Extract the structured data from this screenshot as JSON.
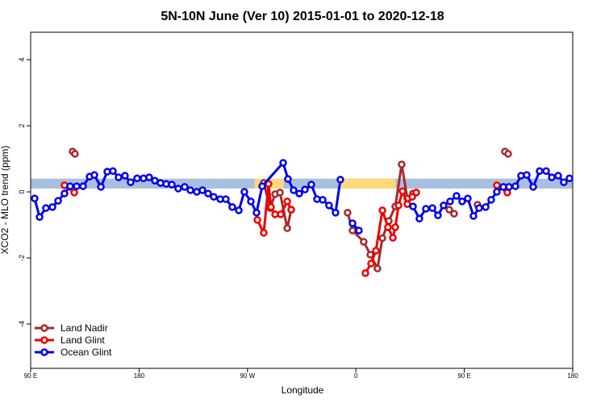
{
  "chart_data": {
    "type": "line",
    "title": "5N-10N June (Ver 10)   2015-01-01 to 2020-12-18",
    "x_label": "Longitude",
    "y_label": "XCO2 - MLO trend (ppm)",
    "xlim": [
      90,
      540
    ],
    "ylim": [
      -5.34,
      4.83
    ],
    "xticks": [
      {
        "value": 90,
        "label": "90 E"
      },
      180,
      {
        "value": 270,
        "label": "90 W"
      },
      {
        "value": 360,
        "label": "0"
      },
      {
        "value": 450,
        "label": "90 E"
      },
      {
        "value": 540,
        "label": "180"
      }
    ],
    "yticks": [
      -4,
      -2,
      0,
      2,
      4
    ],
    "band": {
      "ylim": [
        0.1,
        0.4
      ],
      "color": "#a9bfdf"
    },
    "highlight_spans": {
      "color": "#ffd97a",
      "ranges": [
        [
          276,
          300
        ],
        [
          345,
          393
        ]
      ]
    },
    "legend": "bottom-left",
    "series": [
      {
        "name": "Land Nadir",
        "color": "#a52a2a",
        "x": [
          124.8,
          126.8,
          200,
          283.5,
          288.9,
          292.9,
          297.0,
          303.0,
          306.3,
          330,
          353.1,
          357.2,
          366.5,
          372.0,
          377.9,
          382.0,
          387.3,
          392.7,
          398.0,
          402.7,
          407.4,
          420,
          437.5,
          441.5,
          450,
          461.0,
          470,
          483.7,
          486.4
        ],
        "values": [
          1.22,
          1.15,
          null,
          0.27,
          -0.49,
          -0.07,
          -0.02,
          -1.1,
          -0.54,
          null,
          -0.63,
          -1.17,
          -1.51,
          -1.9,
          -2.32,
          -1.4,
          -0.88,
          -0.44,
          0.83,
          -0.2,
          -0.05,
          null,
          -0.54,
          -0.66,
          null,
          -0.39,
          null,
          1.22,
          1.15
        ]
      },
      {
        "name": "Land Glint",
        "color": "#ee0000",
        "x": [
          118.1,
          126.2,
          200,
          278.2,
          283.5,
          287.5,
          289.5,
          292.9,
          297.6,
          303.0,
          306.3,
          330,
          367.9,
          372.6,
          376.6,
          382.0,
          386.6,
          390.7,
          392.7,
          395.4,
          398.7,
          402.7,
          406.8,
          410.1,
          440,
          477.0,
          485.7
        ],
        "values": [
          0.2,
          -0.02,
          null,
          -0.85,
          -1.24,
          0.24,
          -0.46,
          -0.68,
          -0.68,
          -0.29,
          -0.54,
          null,
          -2.46,
          -2.17,
          -1.78,
          -0.56,
          -1.07,
          -1.39,
          -1.07,
          -0.41,
          0.02,
          -0.37,
          -0.15,
          -0.02,
          null,
          0.2,
          -0.02
        ]
      },
      {
        "name": "Ocean Glint",
        "color": "#0000ee",
        "x": [
          93.3,
          97.4,
          102.7,
          108.1,
          112.8,
          118.1,
          122.8,
          128.2,
          133.5,
          138.9,
          142.9,
          148.3,
          153.6,
          158.3,
          163.0,
          168.3,
          173.0,
          178.4,
          183.7,
          188.4,
          193.1,
          197.8,
          202.5,
          207.2,
          212.5,
          217.9,
          222.6,
          227.9,
          232.6,
          237.3,
          242.0,
          247.4,
          252.0,
          257.4,
          262.8,
          267.4,
          272.8,
          277.5,
          282.2,
          299.6,
          303.6,
          308.3,
          313.0,
          317.7,
          323.0,
          327.7,
          332.4,
          337.7,
          343.1,
          347.1,
          350,
          357.2,
          362.5,
          380,
          407.4,
          412.7,
          418.1,
          423.5,
          428.1,
          432.8,
          438.2,
          443.5,
          448.2,
          452.9,
          457.6,
          462.3,
          467.7,
          472.3,
          477.0,
          482.4,
          487.1,
          492.4,
          497.1,
          501.8,
          507.2,
          512.5,
          517.9,
          522.6,
          527.9,
          532.6,
          537.3
        ],
        "values": [
          -0.2,
          -0.76,
          -0.49,
          -0.46,
          -0.27,
          -0.05,
          0.17,
          0.17,
          0.17,
          0.46,
          0.51,
          0.15,
          0.61,
          0.63,
          0.44,
          0.49,
          0.29,
          0.41,
          0.41,
          0.44,
          0.34,
          0.27,
          0.24,
          0.22,
          0.1,
          0.15,
          0.05,
          0,
          0.05,
          -0.05,
          -0.15,
          -0.22,
          -0.22,
          -0.46,
          -0.56,
          0,
          -0.29,
          -0.63,
          0.17,
          0.88,
          0.39,
          0.05,
          -0.05,
          0.07,
          0.22,
          -0.22,
          -0.24,
          -0.41,
          -0.63,
          0.37,
          null,
          -0.95,
          -1.17,
          null,
          -0.44,
          -0.81,
          -0.51,
          -0.49,
          -0.71,
          -0.41,
          -0.29,
          -0.12,
          -0.29,
          -0.2,
          -0.73,
          -0.49,
          -0.46,
          -0.24,
          0,
          0.15,
          0.15,
          0.17,
          0.49,
          0.51,
          0.15,
          0.63,
          0.63,
          0.44,
          0.49,
          0.29,
          0.41
        ]
      }
    ]
  }
}
